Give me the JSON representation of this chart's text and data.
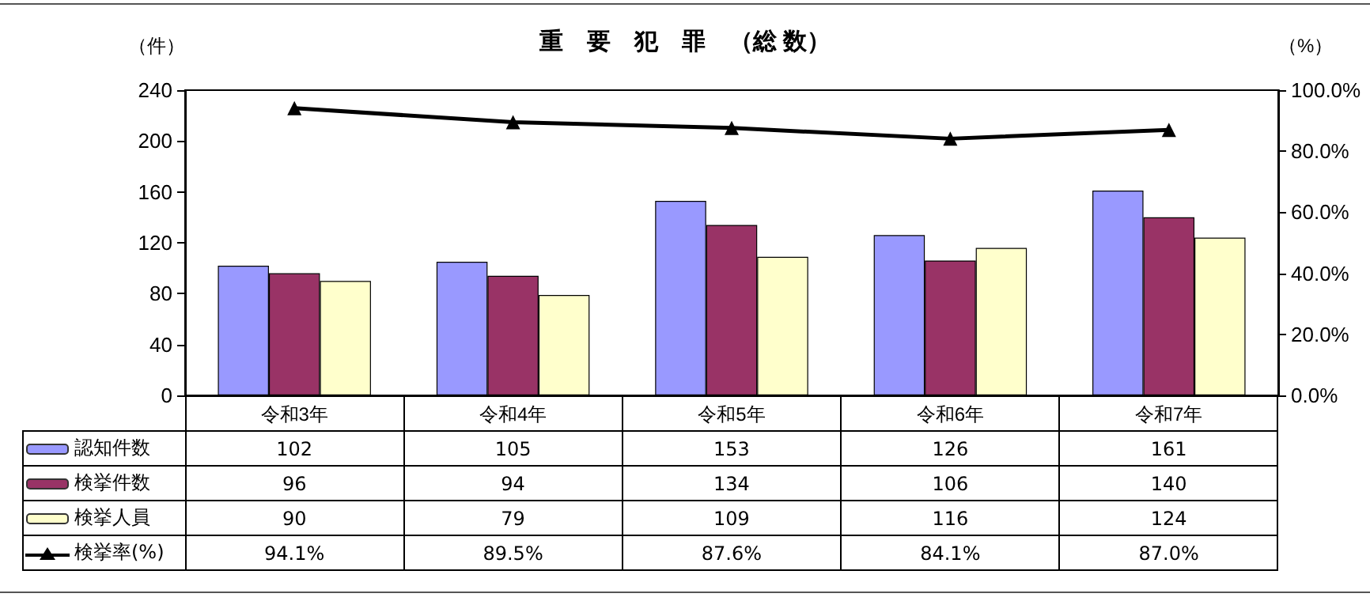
{
  "chart_data": {
    "type": "bar",
    "title": "重　要　犯　罪　（総 数）",
    "ylabel": "（件）",
    "y2label": "（%）",
    "categories": [
      "令和3年",
      "令和4年",
      "令和5年",
      "令和6年",
      "令和7年"
    ],
    "series": [
      {
        "name": "認知件数",
        "color": "#9999ff",
        "values": [
          102,
          105,
          153,
          126,
          161
        ]
      },
      {
        "name": "検挙件数",
        "color": "#993366",
        "values": [
          96,
          94,
          134,
          106,
          140
        ]
      },
      {
        "name": "検挙人員",
        "color": "#ffffcc",
        "values": [
          90,
          79,
          109,
          116,
          124
        ]
      },
      {
        "name": "検挙率(%)",
        "type": "line",
        "axis": "y2",
        "color": "#000000",
        "marker": "triangle",
        "values": [
          94.1,
          89.5,
          87.6,
          84.1,
          87.0
        ],
        "value_labels": [
          "94.1%",
          "89.5%",
          "87.6%",
          "84.1%",
          "87.0%"
        ]
      }
    ],
    "ylim": [
      0,
      240
    ],
    "yticks": [
      0,
      40,
      80,
      120,
      160,
      200,
      240
    ],
    "y2lim": [
      0,
      100
    ],
    "y2ticks": [
      {
        "value": 0,
        "label": "0.0%"
      },
      {
        "value": 20,
        "label": "20.0%"
      },
      {
        "value": 40,
        "label": "40.0%"
      },
      {
        "value": 60,
        "label": "60.0%"
      },
      {
        "value": 80,
        "label": "80.0%"
      },
      {
        "value": 100,
        "label": "100.0%"
      }
    ],
    "data_labels": true,
    "legend": "bottom",
    "grid": false
  }
}
